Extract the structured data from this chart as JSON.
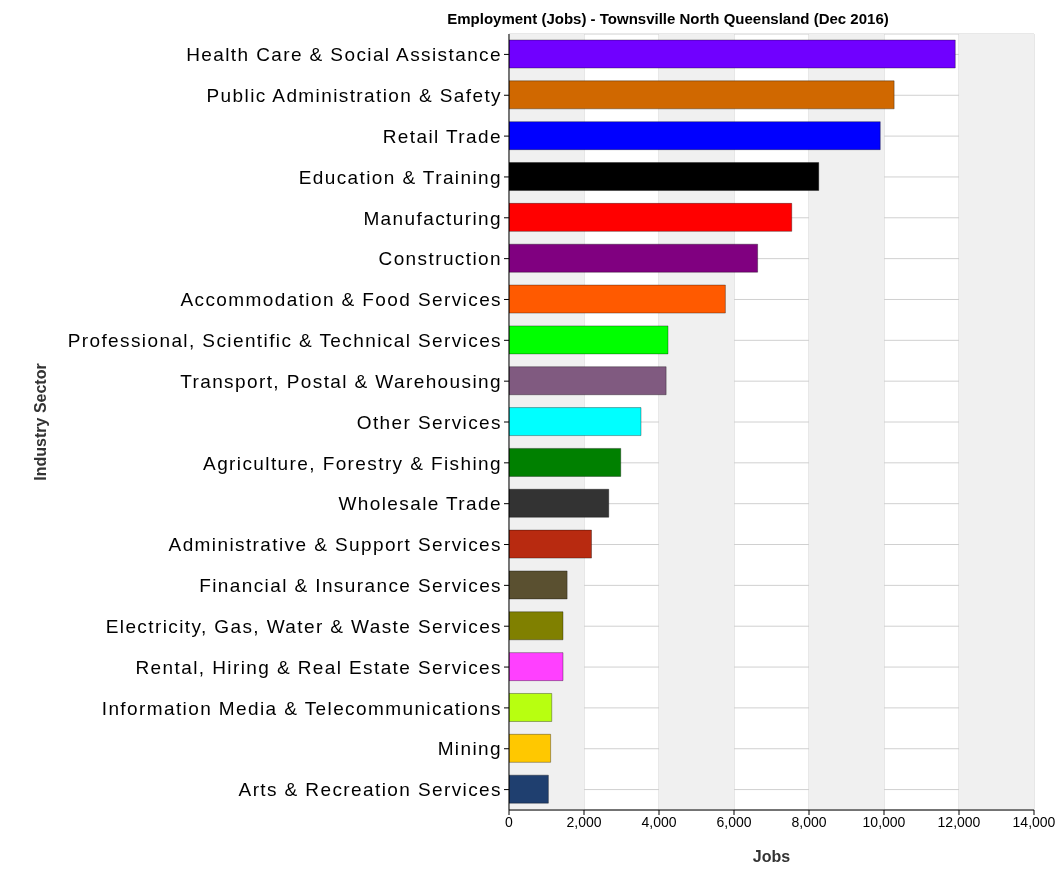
{
  "chart_data": {
    "type": "bar",
    "orientation": "horizontal",
    "title": "Employment (Jobs) - Townsville North Queensland (Dec 2016)",
    "xlabel": "Jobs",
    "ylabel": "Industry Sector",
    "categories": [
      "Health Care & Social Assistance",
      "Public Administration & Safety",
      "Retail Trade",
      "Education & Training",
      "Manufacturing",
      "Construction",
      "Accommodation & Food Services",
      "Professional, Scientific & Technical Services",
      "Transport, Postal & Warehousing",
      "Other Services",
      "Agriculture, Forestry & Fishing",
      "Wholesale Trade",
      "Administrative & Support Services",
      "Financial & Insurance Services",
      "Electricity, Gas, Water & Waste Services",
      "Rental, Hiring & Real Estate Services",
      "Information Media & Telecommunications",
      "Mining",
      "Arts & Recreation Services"
    ],
    "values": [
      11900,
      10270,
      9900,
      8260,
      7540,
      6630,
      5770,
      4240,
      4190,
      3520,
      2980,
      2660,
      2200,
      1550,
      1440,
      1440,
      1140,
      1110,
      1050
    ],
    "colors": [
      "#7000ff",
      "#d06800",
      "#0000ff",
      "#000000",
      "#ff0000",
      "#800080",
      "#ff5a00",
      "#00ff00",
      "#805a80",
      "#00ffff",
      "#008000",
      "#333333",
      "#b82a10",
      "#5a5030",
      "#808000",
      "#ff40ff",
      "#b8ff10",
      "#ffc800",
      "#1f3f6f"
    ],
    "xlim": [
      0,
      14000
    ],
    "xticks": [
      {
        "value": 0,
        "label": "0"
      },
      {
        "value": 2000,
        "label": "2,000"
      },
      {
        "value": 4000,
        "label": "4,000"
      },
      {
        "value": 6000,
        "label": "6,000"
      },
      {
        "value": 8000,
        "label": "8,000"
      },
      {
        "value": 10000,
        "label": "10,000"
      },
      {
        "value": 12000,
        "label": "12,000"
      },
      {
        "value": 14000,
        "label": "14,000"
      }
    ],
    "bands": [
      {
        "axis": "x",
        "from": 0,
        "to": 2000,
        "color": "#f0f0f0"
      },
      {
        "axis": "x",
        "from": 4000,
        "to": 6000,
        "color": "#f0f0f0"
      },
      {
        "axis": "x",
        "from": 8000,
        "to": 10000,
        "color": "#f0f0f0"
      },
      {
        "axis": "x",
        "from": 12000,
        "to": 14000,
        "color": "#f0f0f0"
      }
    ],
    "grid": true,
    "legend": false
  }
}
